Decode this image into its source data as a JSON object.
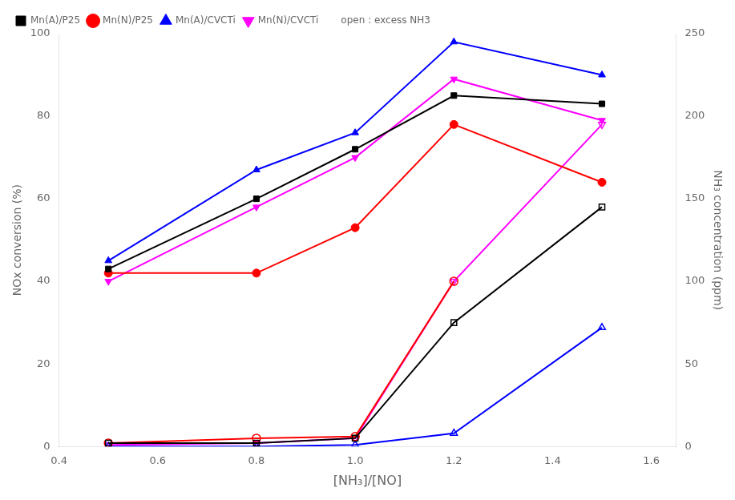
{
  "chart_data": {
    "type": "line",
    "xlabel": "[NH₃]/[NO]",
    "ylabel": "NOx conversion (%)",
    "y2label": "NH₃ concentration (ppm)",
    "xlim": [
      0.4,
      1.65
    ],
    "xticks": [
      0.4,
      0.6,
      0.8,
      {
        "value": 1.0,
        "label": "1.0"
      },
      1.2,
      1.4,
      1.6
    ],
    "ylim": [
      0,
      100
    ],
    "yticks": [
      0,
      20,
      40,
      60,
      80,
      100
    ],
    "y2lim": [
      0,
      250
    ],
    "y2ticks": [
      0,
      50,
      100,
      150,
      200,
      250
    ],
    "grid": false,
    "legend": "upper left",
    "annotations": [
      "open : excess NH3"
    ],
    "series": [
      {
        "name": "Mn(A)/P25",
        "color": "#000000",
        "marker": "square",
        "x": [
          0.5,
          0.8,
          1.0,
          1.2,
          1.5
        ],
        "values": [
          43,
          60,
          72,
          85,
          83
        ]
      },
      {
        "name": "Mn(N)/P25",
        "color": "#ff0000",
        "marker": "circle",
        "x": [
          0.5,
          0.8,
          1.0,
          1.2,
          1.5
        ],
        "values": [
          42,
          42,
          53,
          78,
          64
        ]
      },
      {
        "name": "Mn(A)/CVCTi",
        "color": "#0000ff",
        "marker": "triangle_up",
        "x": [
          0.5,
          0.8,
          1.0,
          1.2,
          1.5
        ],
        "values": [
          45,
          67,
          76,
          98,
          90
        ]
      },
      {
        "name": "Mn(N)/CVCTi",
        "color": "#ff00ff",
        "marker": "triangle_down",
        "x": [
          0.5,
          0.8,
          1.0,
          1.2,
          1.5
        ],
        "values": [
          40,
          58,
          70,
          89,
          79
        ]
      },
      {
        "color": "#000000",
        "marker": "open_square",
        "axis": "y2",
        "x": [
          0.5,
          0.8,
          1.0,
          1.2,
          1.5
        ],
        "values": [
          2,
          2,
          5,
          75,
          145
        ]
      },
      {
        "color": "#ff0000",
        "marker": "open_circle",
        "axis": "y2",
        "x": [
          0.5,
          0.8,
          1.0,
          1.2
        ],
        "values": [
          2,
          5,
          6,
          100
        ]
      },
      {
        "color": "#0000ff",
        "marker": "open_triangle_up",
        "axis": "y2",
        "x": [
          0.5,
          0.8,
          1.0,
          1.2,
          1.5
        ],
        "values": [
          0,
          0,
          1,
          8,
          72
        ]
      },
      {
        "color": "#ff00ff",
        "marker": "open_triangle_down",
        "axis": "y2",
        "x": [
          0.5,
          0.8,
          1.0,
          1.2,
          1.5
        ],
        "values": [
          1,
          2,
          5,
          100,
          195
        ]
      }
    ]
  }
}
